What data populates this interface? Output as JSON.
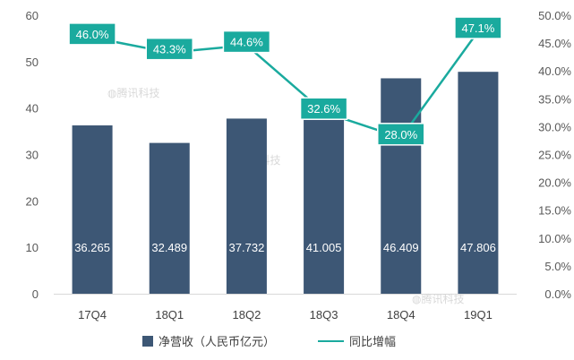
{
  "chart_data": {
    "type": "bar+line",
    "categories": [
      "17Q4",
      "18Q1",
      "18Q2",
      "18Q3",
      "18Q4",
      "19Q1"
    ],
    "series": [
      {
        "name": "净营收（人民币亿元）",
        "type": "bar",
        "axis": "left",
        "values": [
          36.265,
          32.489,
          37.732,
          41.005,
          46.409,
          47.806
        ],
        "labels": [
          "36.265",
          "32.489",
          "37.732",
          "41.005",
          "46.409",
          "47.806"
        ]
      },
      {
        "name": "同比增幅",
        "type": "line",
        "axis": "right",
        "values": [
          46.0,
          43.3,
          44.6,
          32.6,
          28.0,
          47.1
        ],
        "labels": [
          "46.0%",
          "43.3%",
          "44.6%",
          "32.6%",
          "28.0%",
          "47.1%"
        ]
      }
    ],
    "y_left": {
      "min": 0,
      "max": 60,
      "ticks": [
        "0",
        "10",
        "20",
        "30",
        "40",
        "50",
        "60"
      ]
    },
    "y_right": {
      "min": 0,
      "max": 50,
      "ticks": [
        "0.0%",
        "5.0%",
        "10.0%",
        "15.0%",
        "20.0%",
        "25.0%",
        "30.0%",
        "35.0%",
        "40.0%",
        "45.0%",
        "50.0%"
      ]
    },
    "grid": false,
    "legend_position": "bottom",
    "colors": {
      "bar": "#3d5775",
      "line": "#1aaa9e"
    },
    "watermark": "腾讯科技"
  }
}
